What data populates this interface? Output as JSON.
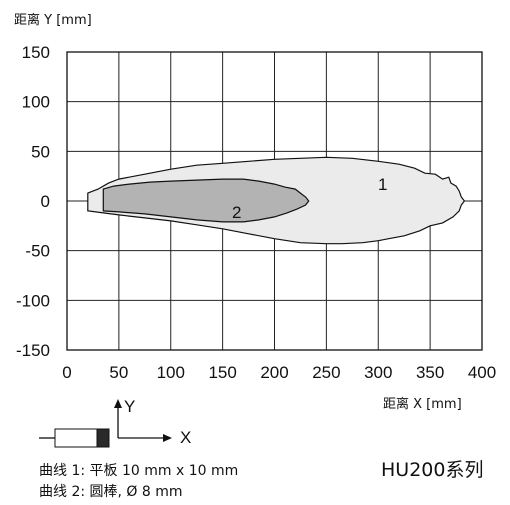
{
  "chart_data": {
    "type": "area",
    "ylabel": "距离 Y [mm]",
    "xlabel": "距离 X [mm]",
    "xlim": [
      0,
      400
    ],
    "ylim": [
      -150,
      150
    ],
    "x_ticks": [
      "0",
      "50",
      "100",
      "150",
      "200",
      "250",
      "300",
      "350",
      "400"
    ],
    "y_ticks": [
      "150",
      "100",
      "50",
      "0",
      "-50",
      "-100",
      "-150"
    ],
    "grid": true,
    "series": [
      {
        "name": "1",
        "color": "#ebebeb",
        "points": [
          [
            20,
            8
          ],
          [
            30,
            12
          ],
          [
            40,
            18
          ],
          [
            50,
            22
          ],
          [
            75,
            27
          ],
          [
            100,
            32
          ],
          [
            125,
            36
          ],
          [
            150,
            38
          ],
          [
            175,
            40
          ],
          [
            200,
            42
          ],
          [
            225,
            43
          ],
          [
            250,
            44
          ],
          [
            275,
            43
          ],
          [
            300,
            40
          ],
          [
            320,
            37
          ],
          [
            335,
            33
          ],
          [
            345,
            28
          ],
          [
            355,
            27
          ],
          [
            362,
            22
          ],
          [
            368,
            24
          ],
          [
            370,
            18
          ],
          [
            375,
            15
          ],
          [
            378,
            10
          ],
          [
            380,
            4
          ],
          [
            383,
            0
          ],
          [
            380,
            -4
          ],
          [
            378,
            -10
          ],
          [
            372,
            -16
          ],
          [
            362,
            -22
          ],
          [
            350,
            -25
          ],
          [
            340,
            -30
          ],
          [
            325,
            -35
          ],
          [
            310,
            -38
          ],
          [
            300,
            -40
          ],
          [
            285,
            -42
          ],
          [
            265,
            -43
          ],
          [
            250,
            -43
          ],
          [
            225,
            -42
          ],
          [
            200,
            -38
          ],
          [
            175,
            -33
          ],
          [
            150,
            -28
          ],
          [
            125,
            -24
          ],
          [
            100,
            -20
          ],
          [
            75,
            -17
          ],
          [
            50,
            -14
          ],
          [
            35,
            -12
          ],
          [
            20,
            -10
          ]
        ]
      },
      {
        "name": "2",
        "color": "#b3b3b3",
        "points": [
          [
            35,
            12
          ],
          [
            45,
            15
          ],
          [
            60,
            17
          ],
          [
            80,
            19
          ],
          [
            100,
            20
          ],
          [
            125,
            21
          ],
          [
            150,
            22
          ],
          [
            170,
            22
          ],
          [
            185,
            20
          ],
          [
            200,
            17
          ],
          [
            210,
            14
          ],
          [
            220,
            12
          ],
          [
            225,
            8
          ],
          [
            230,
            4
          ],
          [
            233,
            0
          ],
          [
            230,
            -4
          ],
          [
            222,
            -8
          ],
          [
            212,
            -12
          ],
          [
            200,
            -16
          ],
          [
            185,
            -19
          ],
          [
            170,
            -21
          ],
          [
            150,
            -21
          ],
          [
            125,
            -19
          ],
          [
            100,
            -16
          ],
          [
            75,
            -13
          ],
          [
            50,
            -11
          ],
          [
            35,
            -10
          ]
        ]
      }
    ],
    "region_labels": [
      "1",
      "2"
    ]
  },
  "legend": {
    "y_arrow_label": "Y",
    "x_arrow_label": "X",
    "curve1": "曲线 1: 平板 10 mm x 10 mm",
    "curve2": "曲线 2: 圆棒, Ø 8 mm"
  },
  "series_title": "HU200系列"
}
